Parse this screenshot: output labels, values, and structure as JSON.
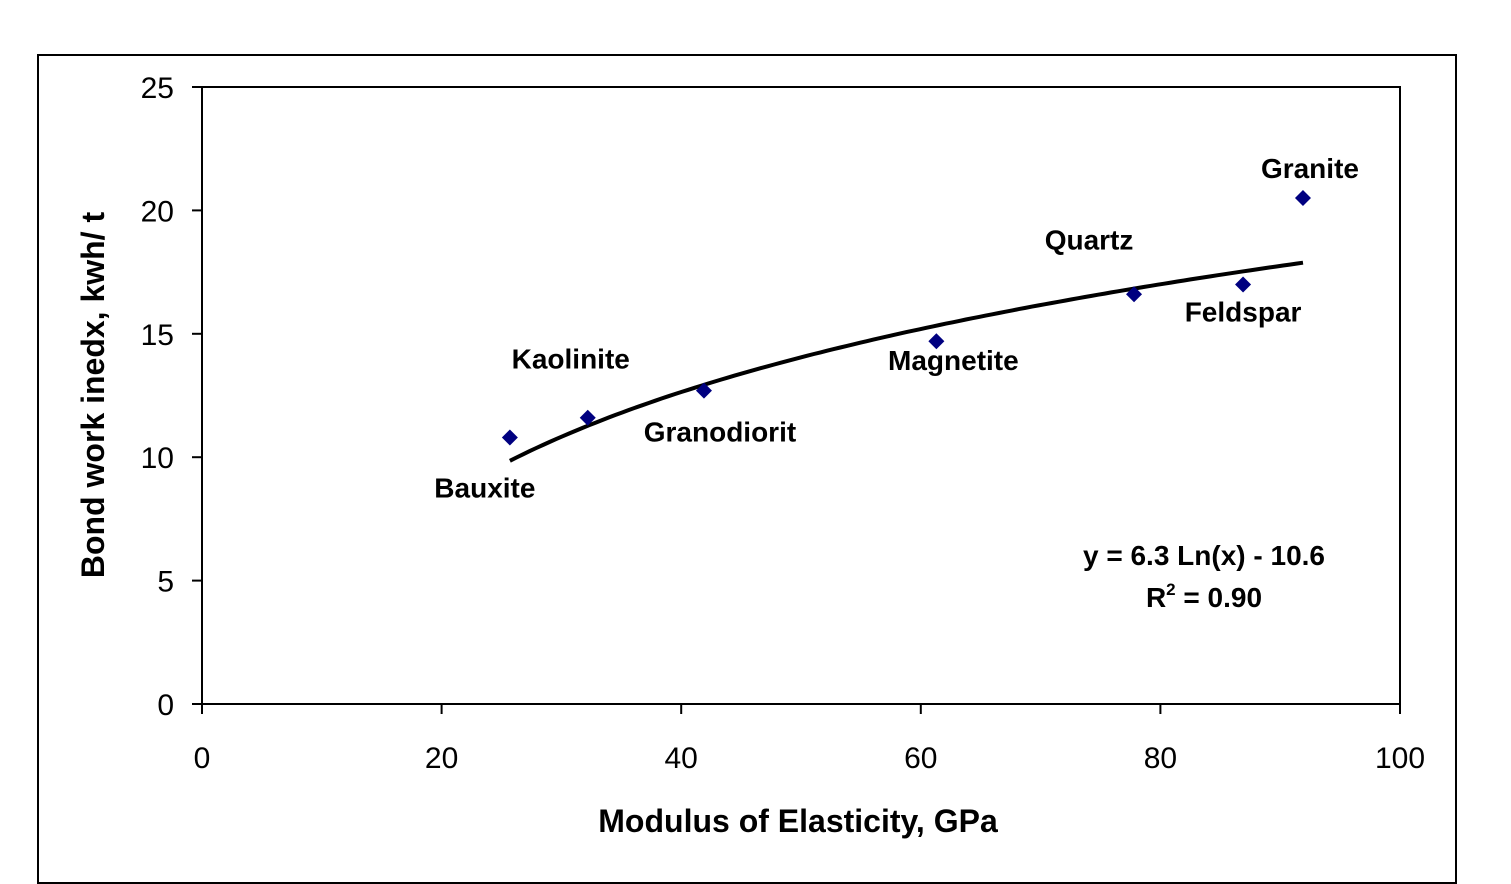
{
  "chart_data": {
    "type": "scatter",
    "title": "",
    "xlabel": "Modulus of Elasticity, GPa",
    "ylabel": "Bond work inedx, kwh/ t",
    "xlim": [
      0,
      100
    ],
    "ylim": [
      0,
      25
    ],
    "xticks": [
      0,
      20,
      40,
      60,
      80,
      100
    ],
    "yticks": [
      0,
      5,
      10,
      15,
      20,
      25
    ],
    "grid": false,
    "legend": "none",
    "marker_color": "#000080",
    "trend_color": "#000000",
    "points": [
      {
        "label": "Bauxite",
        "x": 25.7,
        "y": 10.8
      },
      {
        "label": "Kaolinite",
        "x": 32.2,
        "y": 11.6
      },
      {
        "label": "Granodiorit",
        "x": 41.9,
        "y": 12.7
      },
      {
        "label": "Magnetite",
        "x": 61.3,
        "y": 14.7
      },
      {
        "label": "Quartz",
        "x": 77.8,
        "y": 16.6
      },
      {
        "label": "Feldspar",
        "x": 86.9,
        "y": 17.0
      },
      {
        "label": "Granite",
        "x": 91.9,
        "y": 20.5
      }
    ],
    "trendline": {
      "model": "log",
      "a": 6.3,
      "b": -10.6,
      "x_range": [
        25.7,
        91.9
      ],
      "equation": "y = 6.3 Ln(x) - 10.6",
      "r2_prefix": "R",
      "r2_exponent": "2",
      "r2_value": " = 0.90"
    }
  }
}
